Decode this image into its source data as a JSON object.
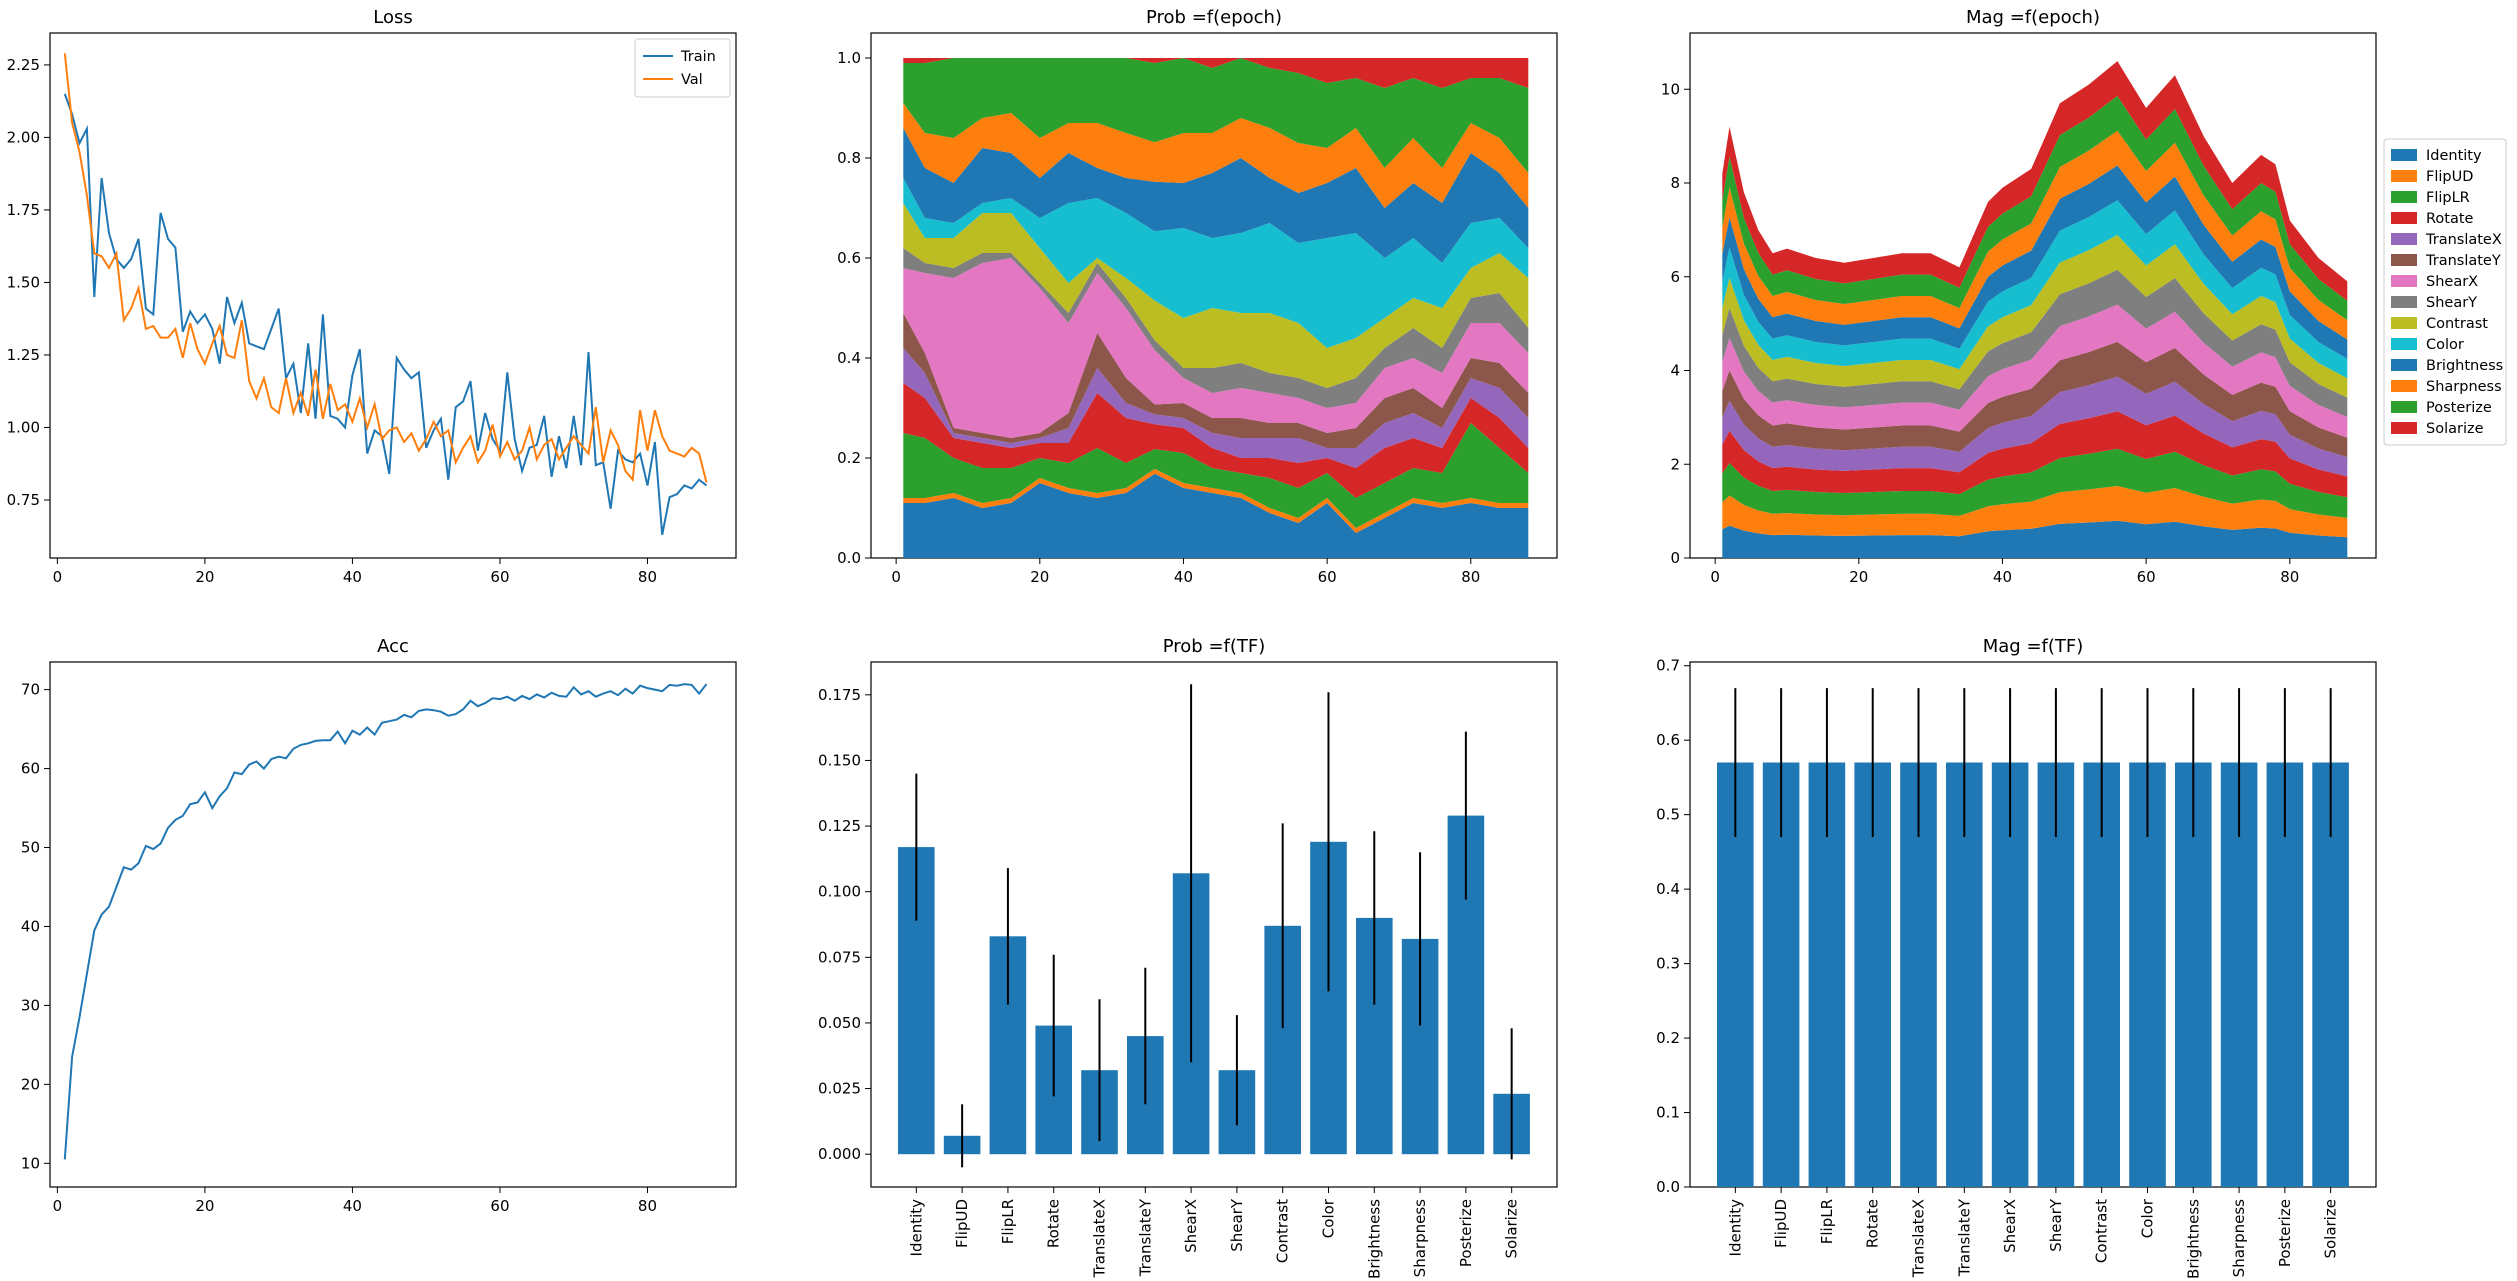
{
  "colors": {
    "palette": [
      "#1f77b4",
      "#ff7f0e",
      "#2ca02c",
      "#d62728",
      "#9467bd",
      "#8c564b",
      "#e377c2",
      "#7f7f7f",
      "#bcbd22",
      "#17becf"
    ],
    "bar": "#1f77b4",
    "errorbar": "#000000"
  },
  "transforms": [
    "Identity",
    "FlipUD",
    "FlipLR",
    "Rotate",
    "TranslateX",
    "TranslateY",
    "ShearX",
    "ShearY",
    "Contrast",
    "Color",
    "Brightness",
    "Sharpness",
    "Posterize",
    "Solarize"
  ],
  "chart_data": [
    {
      "id": "loss",
      "type": "line",
      "title": "Loss",
      "xlim": [
        -1,
        92
      ],
      "ylim": [
        0.55,
        2.36
      ],
      "xticks": [
        0,
        20,
        40,
        60,
        80
      ],
      "yticks": [
        0.75,
        1.0,
        1.25,
        1.5,
        1.75,
        2.0,
        2.25
      ],
      "ytick_decimals": 2,
      "legend": "top-right",
      "series": [
        {
          "name": "Train",
          "color_index": 0,
          "x_start": 1,
          "values": [
            2.15,
            2.08,
            1.98,
            2.03,
            1.45,
            1.86,
            1.67,
            1.58,
            1.55,
            1.58,
            1.65,
            1.41,
            1.39,
            1.74,
            1.65,
            1.62,
            1.33,
            1.4,
            1.36,
            1.39,
            1.34,
            1.22,
            1.45,
            1.36,
            1.43,
            1.29,
            1.28,
            1.27,
            1.34,
            1.41,
            1.17,
            1.22,
            1.05,
            1.29,
            1.03,
            1.39,
            1.04,
            1.03,
            1.0,
            1.18,
            1.27,
            0.91,
            0.99,
            0.97,
            0.84,
            1.24,
            1.2,
            1.17,
            1.19,
            0.93,
            0.99,
            1.03,
            0.82,
            1.07,
            1.09,
            1.16,
            0.92,
            1.05,
            0.96,
            0.92,
            1.19,
            0.96,
            0.85,
            0.93,
            0.94,
            1.04,
            0.83,
            0.97,
            0.86,
            1.04,
            0.87,
            1.26,
            0.87,
            0.88,
            0.72,
            0.92,
            0.89,
            0.88,
            0.91,
            0.8,
            0.95,
            0.63,
            0.76,
            0.77,
            0.8,
            0.79,
            0.82,
            0.8
          ]
        },
        {
          "name": "Val",
          "color_index": 1,
          "x_start": 1,
          "values": [
            2.29,
            2.05,
            1.95,
            1.8,
            1.6,
            1.59,
            1.55,
            1.6,
            1.37,
            1.41,
            1.48,
            1.34,
            1.35,
            1.31,
            1.31,
            1.34,
            1.24,
            1.36,
            1.27,
            1.22,
            1.29,
            1.35,
            1.25,
            1.24,
            1.37,
            1.16,
            1.1,
            1.17,
            1.07,
            1.05,
            1.17,
            1.05,
            1.12,
            1.04,
            1.2,
            1.03,
            1.15,
            1.06,
            1.08,
            1.02,
            1.1,
            1.0,
            1.08,
            0.96,
            0.99,
            1.0,
            0.95,
            0.98,
            0.92,
            0.96,
            1.02,
            0.97,
            0.99,
            0.88,
            0.93,
            0.97,
            0.88,
            0.92,
            1.01,
            0.9,
            0.95,
            0.89,
            0.92,
            1.0,
            0.89,
            0.94,
            0.96,
            0.89,
            0.93,
            0.97,
            0.94,
            0.91,
            1.07,
            0.88,
            0.99,
            0.94,
            0.85,
            0.82,
            1.06,
            0.92,
            1.06,
            0.97,
            0.92,
            0.91,
            0.9,
            0.93,
            0.91,
            0.81
          ]
        }
      ]
    },
    {
      "id": "prob-epoch",
      "type": "area",
      "stacked": true,
      "title": "Prob =f(epoch)",
      "xlim": [
        -3.5,
        92
      ],
      "ylim": [
        0,
        1.05
      ],
      "xticks": [
        0,
        20,
        40,
        60,
        80
      ],
      "yticks": [
        0.0,
        0.2,
        0.4,
        0.6,
        0.8,
        1.0
      ],
      "ytick_decimals": 1,
      "x": [
        1,
        4,
        8,
        12,
        16,
        20,
        24,
        28,
        32,
        36,
        40,
        44,
        48,
        52,
        56,
        60,
        64,
        68,
        72,
        76,
        80,
        84,
        88
      ],
      "series": [
        {
          "name": "Identity",
          "values": [
            0.11,
            0.11,
            0.12,
            0.1,
            0.11,
            0.15,
            0.13,
            0.12,
            0.13,
            0.17,
            0.14,
            0.13,
            0.12,
            0.09,
            0.07,
            0.11,
            0.05,
            0.08,
            0.11,
            0.1,
            0.11,
            0.1,
            0.1
          ]
        },
        {
          "name": "FlipUD",
          "values": [
            0.01,
            0.01,
            0.01,
            0.01,
            0.01,
            0.01,
            0.01,
            0.01,
            0.01,
            0.01,
            0.01,
            0.01,
            0.01,
            0.01,
            0.01,
            0.01,
            0.01,
            0.01,
            0.01,
            0.01,
            0.01,
            0.01,
            0.01
          ]
        },
        {
          "name": "FlipLR",
          "values": [
            0.13,
            0.12,
            0.07,
            0.07,
            0.06,
            0.04,
            0.05,
            0.09,
            0.05,
            0.04,
            0.06,
            0.04,
            0.04,
            0.06,
            0.06,
            0.05,
            0.06,
            0.06,
            0.06,
            0.06,
            0.15,
            0.11,
            0.06
          ]
        },
        {
          "name": "Rotate",
          "values": [
            0.1,
            0.08,
            0.04,
            0.05,
            0.04,
            0.03,
            0.04,
            0.11,
            0.09,
            0.05,
            0.05,
            0.04,
            0.03,
            0.04,
            0.05,
            0.03,
            0.06,
            0.07,
            0.06,
            0.05,
            0.05,
            0.06,
            0.05
          ]
        },
        {
          "name": "TranslateX",
          "values": [
            0.07,
            0.05,
            0.01,
            0.01,
            0.01,
            0.01,
            0.03,
            0.05,
            0.03,
            0.02,
            0.02,
            0.03,
            0.04,
            0.04,
            0.05,
            0.02,
            0.04,
            0.05,
            0.05,
            0.04,
            0.04,
            0.06,
            0.06
          ]
        },
        {
          "name": "TranslateY",
          "values": [
            0.07,
            0.04,
            0.01,
            0.01,
            0.01,
            0.01,
            0.03,
            0.07,
            0.05,
            0.02,
            0.03,
            0.03,
            0.04,
            0.03,
            0.03,
            0.03,
            0.04,
            0.05,
            0.05,
            0.04,
            0.04,
            0.05,
            0.05
          ]
        },
        {
          "name": "ShearX",
          "values": [
            0.09,
            0.16,
            0.3,
            0.34,
            0.36,
            0.29,
            0.18,
            0.12,
            0.14,
            0.11,
            0.05,
            0.05,
            0.06,
            0.06,
            0.05,
            0.05,
            0.05,
            0.06,
            0.06,
            0.07,
            0.07,
            0.08,
            0.08
          ]
        },
        {
          "name": "ShearY",
          "values": [
            0.04,
            0.02,
            0.02,
            0.02,
            0.01,
            0.01,
            0.02,
            0.02,
            0.02,
            0.02,
            0.02,
            0.05,
            0.05,
            0.04,
            0.04,
            0.04,
            0.05,
            0.04,
            0.06,
            0.05,
            0.05,
            0.06,
            0.05
          ]
        },
        {
          "name": "Contrast",
          "values": [
            0.09,
            0.05,
            0.06,
            0.08,
            0.08,
            0.07,
            0.06,
            0.01,
            0.04,
            0.08,
            0.1,
            0.12,
            0.1,
            0.12,
            0.11,
            0.08,
            0.08,
            0.06,
            0.06,
            0.08,
            0.06,
            0.08,
            0.1
          ]
        },
        {
          "name": "Color",
          "values": [
            0.05,
            0.04,
            0.03,
            0.02,
            0.03,
            0.06,
            0.16,
            0.12,
            0.13,
            0.14,
            0.18,
            0.14,
            0.16,
            0.18,
            0.16,
            0.22,
            0.21,
            0.12,
            0.12,
            0.09,
            0.09,
            0.07,
            0.06
          ]
        },
        {
          "name": "Brightness",
          "values": [
            0.1,
            0.1,
            0.08,
            0.11,
            0.09,
            0.08,
            0.1,
            0.06,
            0.07,
            0.1,
            0.09,
            0.13,
            0.15,
            0.09,
            0.1,
            0.11,
            0.13,
            0.1,
            0.11,
            0.12,
            0.14,
            0.09,
            0.08
          ]
        },
        {
          "name": "Sharpness",
          "values": [
            0.05,
            0.07,
            0.09,
            0.06,
            0.08,
            0.08,
            0.06,
            0.09,
            0.09,
            0.08,
            0.1,
            0.08,
            0.08,
            0.1,
            0.1,
            0.07,
            0.08,
            0.08,
            0.09,
            0.07,
            0.06,
            0.07,
            0.07
          ]
        },
        {
          "name": "Posterize",
          "values": [
            0.08,
            0.14,
            0.16,
            0.12,
            0.11,
            0.16,
            0.13,
            0.13,
            0.15,
            0.16,
            0.15,
            0.13,
            0.12,
            0.12,
            0.14,
            0.13,
            0.1,
            0.16,
            0.12,
            0.16,
            0.09,
            0.12,
            0.17
          ]
        },
        {
          "name": "Solarize",
          "values": [
            0.01,
            0.01,
            0.0,
            0.0,
            0.0,
            0.0,
            0.0,
            0.0,
            0.0,
            0.01,
            0.0,
            0.02,
            0.0,
            0.02,
            0.03,
            0.05,
            0.04,
            0.06,
            0.04,
            0.06,
            0.04,
            0.04,
            0.06
          ]
        }
      ]
    },
    {
      "id": "mag-epoch",
      "type": "area",
      "stacked": true,
      "title": "Mag =f(epoch)",
      "xlim": [
        -3.5,
        92
      ],
      "ylim": [
        0,
        11.2
      ],
      "xticks": [
        0,
        20,
        40,
        60,
        80
      ],
      "yticks": [
        0,
        2,
        4,
        6,
        8,
        10
      ],
      "ytick_decimals": 0,
      "legend": "right",
      "x": [
        1,
        2,
        4,
        6,
        8,
        10,
        14,
        18,
        22,
        26,
        30,
        34,
        36,
        38,
        40,
        44,
        48,
        52,
        56,
        60,
        64,
        68,
        72,
        76,
        78,
        80,
        84,
        88
      ],
      "totals": [
        8.2,
        9.2,
        7.8,
        7.0,
        6.5,
        6.6,
        6.4,
        6.3,
        6.4,
        6.5,
        6.5,
        6.2,
        6.9,
        7.6,
        7.9,
        8.3,
        9.7,
        10.1,
        10.6,
        9.6,
        10.3,
        9.0,
        8.0,
        8.6,
        8.4,
        7.2,
        6.4,
        5.9
      ],
      "series": [
        {
          "name": "Identity",
          "share": 0.075
        },
        {
          "name": "FlipUD",
          "share": 0.07
        },
        {
          "name": "FlipLR",
          "share": 0.075
        },
        {
          "name": "Rotate",
          "share": 0.075
        },
        {
          "name": "TranslateX",
          "share": 0.07
        },
        {
          "name": "TranslateY",
          "share": 0.07
        },
        {
          "name": "ShearX",
          "share": 0.075
        },
        {
          "name": "ShearY",
          "share": 0.07
        },
        {
          "name": "Contrast",
          "share": 0.07
        },
        {
          "name": "Color",
          "share": 0.07
        },
        {
          "name": "Brightness",
          "share": 0.07
        },
        {
          "name": "Sharpness",
          "share": 0.07
        },
        {
          "name": "Posterize",
          "share": 0.07
        },
        {
          "name": "Solarize",
          "share": 0.07
        }
      ]
    },
    {
      "id": "acc",
      "type": "line",
      "title": "Acc",
      "xlim": [
        -1,
        92
      ],
      "ylim": [
        7,
        73.5
      ],
      "xticks": [
        0,
        20,
        40,
        60,
        80
      ],
      "yticks": [
        10,
        20,
        30,
        40,
        50,
        60,
        70
      ],
      "ytick_decimals": 0,
      "series": [
        {
          "name": "",
          "color_index": 0,
          "x_start": 1,
          "values": [
            10.5,
            23.5,
            28.5,
            34.0,
            39.5,
            41.5,
            42.5,
            45.0,
            47.5,
            47.2,
            48.0,
            50.2,
            49.8,
            50.5,
            52.5,
            53.5,
            54.0,
            55.5,
            55.7,
            57.0,
            55.0,
            56.5,
            57.5,
            59.5,
            59.3,
            60.5,
            60.9,
            60.0,
            61.2,
            61.5,
            61.3,
            62.5,
            63.0,
            63.2,
            63.5,
            63.6,
            63.6,
            64.7,
            63.2,
            64.8,
            64.3,
            65.2,
            64.3,
            65.8,
            66.0,
            66.2,
            66.8,
            66.5,
            67.3,
            67.5,
            67.4,
            67.2,
            66.7,
            66.9,
            67.5,
            68.6,
            67.9,
            68.3,
            68.9,
            68.8,
            69.1,
            68.6,
            69.2,
            68.8,
            69.4,
            69.0,
            69.6,
            69.2,
            69.1,
            70.3,
            69.4,
            69.8,
            69.1,
            69.5,
            69.8,
            69.3,
            70.1,
            69.5,
            70.5,
            70.2,
            70.0,
            69.8,
            70.6,
            70.5,
            70.7,
            70.6,
            69.5,
            70.7
          ]
        }
      ]
    },
    {
      "id": "prob-tf",
      "type": "bar",
      "title": "Prob =f(TF)",
      "ylim": [
        -0.0125,
        0.1875
      ],
      "yticks": [
        0.0,
        0.025,
        0.05,
        0.075,
        0.1,
        0.125,
        0.15,
        0.175
      ],
      "ytick_decimals": 3,
      "values": [
        0.117,
        0.007,
        0.083,
        0.049,
        0.032,
        0.045,
        0.107,
        0.032,
        0.087,
        0.119,
        0.09,
        0.082,
        0.129,
        0.023
      ],
      "errors": [
        0.028,
        0.012,
        0.026,
        0.027,
        0.027,
        0.026,
        0.072,
        0.021,
        0.039,
        0.057,
        0.033,
        0.033,
        0.032,
        0.025
      ]
    },
    {
      "id": "mag-tf",
      "type": "bar",
      "title": "Mag =f(TF)",
      "ylim": [
        0,
        0.705
      ],
      "yticks": [
        0.0,
        0.1,
        0.2,
        0.3,
        0.4,
        0.5,
        0.6,
        0.7
      ],
      "ytick_decimals": 1,
      "values": [
        0.57,
        0.57,
        0.57,
        0.57,
        0.57,
        0.57,
        0.57,
        0.57,
        0.57,
        0.57,
        0.57,
        0.57,
        0.57,
        0.57
      ],
      "errors": [
        0.1,
        0.1,
        0.1,
        0.1,
        0.1,
        0.1,
        0.1,
        0.1,
        0.1,
        0.1,
        0.1,
        0.1,
        0.1,
        0.1
      ]
    }
  ]
}
